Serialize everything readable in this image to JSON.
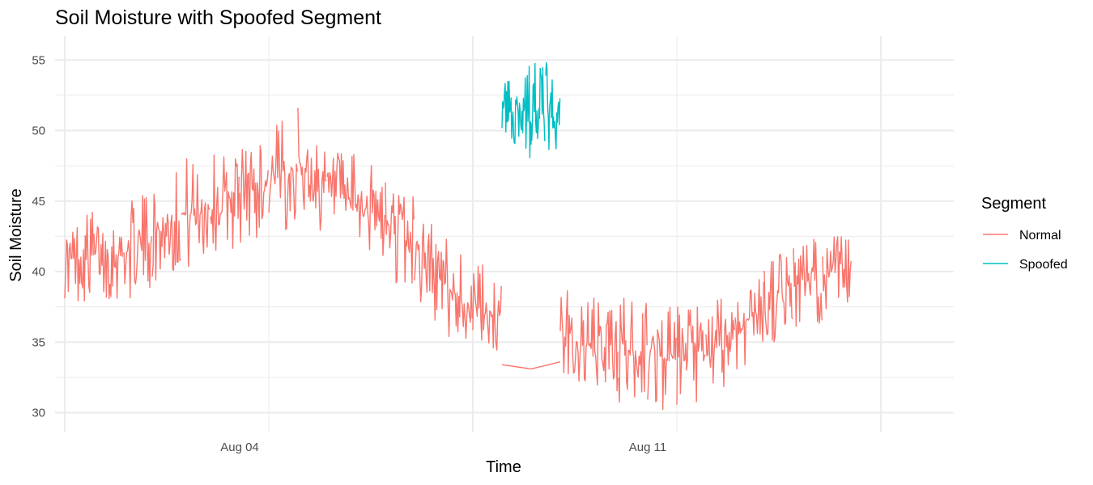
{
  "chart_data": {
    "type": "line",
    "title": "Soil Moisture with Spoofed Segment",
    "xlabel": "Time",
    "ylabel": "Soil Moisture",
    "x_unit": "date",
    "x_tick_labels": [
      "Aug 04",
      "Aug 11"
    ],
    "y_ticks": [
      30,
      35,
      40,
      45,
      50,
      55
    ],
    "ylim": [
      29.3,
      56.2
    ],
    "grid": true,
    "legend": {
      "title": "Segment",
      "position": "right"
    },
    "series": [
      {
        "name": "Normal",
        "color": "#F8766D",
        "band": [
          {
            "x": "Aug 01 00:00",
            "min": 38.1,
            "max": 43.5
          },
          {
            "x": "Aug 01 12:00",
            "min": 37.6,
            "max": 44.8
          },
          {
            "x": "Aug 02 00:00",
            "min": 37.8,
            "max": 44.7
          },
          {
            "x": "Aug 02 12:00",
            "min": 38.9,
            "max": 45.9
          },
          {
            "x": "Aug 03 00:00",
            "min": 39.7,
            "max": 48.2
          },
          {
            "x": "Aug 03 12:00",
            "min": 40.5,
            "max": 48.5
          },
          {
            "x": "Aug 04 00:00",
            "min": 41.8,
            "max": 49.4
          },
          {
            "x": "Aug 04 12:00",
            "min": 42.6,
            "max": 50.1
          },
          {
            "x": "Aug 05 00:00",
            "min": 43.0,
            "max": 51.8
          },
          {
            "x": "Aug 05 12:00",
            "min": 42.8,
            "max": 48.5
          },
          {
            "x": "Aug 06 00:00",
            "min": 41.7,
            "max": 48.3
          },
          {
            "x": "Aug 06 12:00",
            "min": 39.8,
            "max": 47.2
          },
          {
            "x": "Aug 07 00:00",
            "min": 37.5,
            "max": 46.1
          },
          {
            "x": "Aug 07 12:00",
            "min": 35.2,
            "max": 42.8
          },
          {
            "x": "Aug 08 00:00",
            "min": 34.3,
            "max": 40.6
          },
          {
            "x": "Aug 08 12:00",
            "min": 33.4,
            "max": 40.5
          },
          {
            "x": "Aug 09 12:00",
            "min": 31.8,
            "max": 39.2
          },
          {
            "x": "Aug 10 00:00",
            "min": 30.7,
            "max": 38.4
          },
          {
            "x": "Aug 10 12:00",
            "min": 30.3,
            "max": 38.7
          },
          {
            "x": "Aug 11 00:00",
            "min": 30.4,
            "max": 38.1
          },
          {
            "x": "Aug 11 12:00",
            "min": 29.8,
            "max": 37.6
          },
          {
            "x": "Aug 12 00:00",
            "min": 29.8,
            "max": 38.2
          },
          {
            "x": "Aug 12 12:00",
            "min": 32.6,
            "max": 38.9
          },
          {
            "x": "Aug 13 00:00",
            "min": 34.6,
            "max": 40.8
          },
          {
            "x": "Aug 13 12:00",
            "min": 35.8,
            "max": 42.3
          },
          {
            "x": "Aug 14 00:00",
            "min": 36.3,
            "max": 42.6
          },
          {
            "x": "Aug 14 12:00",
            "min": 37.3,
            "max": 42.8
          }
        ],
        "bridge": [
          {
            "x": "Aug 08 12:00",
            "y": 33.4
          },
          {
            "x": "Aug 09 00:00",
            "y": 33.1
          },
          {
            "x": "Aug 09 12:00",
            "y": 33.6
          }
        ]
      },
      {
        "name": "Spoofed",
        "color": "#00BFC4",
        "band": [
          {
            "x": "Aug 08 12:00",
            "min": 49.8,
            "max": 53.5
          },
          {
            "x": "Aug 09 00:00",
            "min": 47.5,
            "max": 55.2
          },
          {
            "x": "Aug 09 06:00",
            "min": 48.0,
            "max": 55.0
          },
          {
            "x": "Aug 09 12:00",
            "min": 48.2,
            "max": 52.5
          }
        ]
      }
    ]
  }
}
